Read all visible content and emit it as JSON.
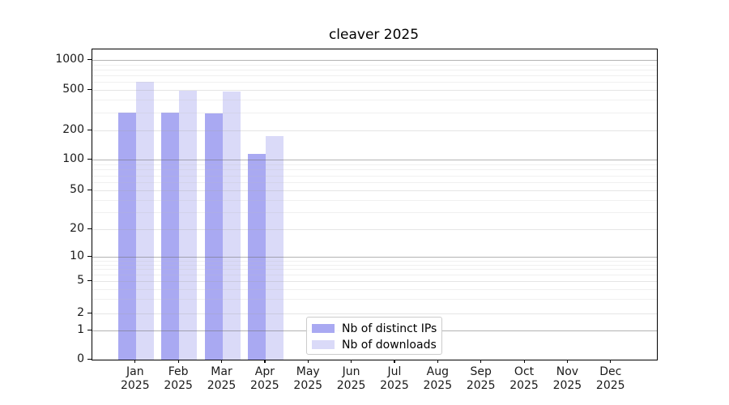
{
  "chart_data": {
    "type": "bar",
    "title": "cleaver 2025",
    "categories": [
      "Jan",
      "Feb",
      "Mar",
      "Apr",
      "May",
      "Jun",
      "Jul",
      "Aug",
      "Sep",
      "Oct",
      "Nov",
      "Dec"
    ],
    "year_label": "2025",
    "series": [
      {
        "name": "Nb of distinct IPs",
        "color": "#a9a9f2",
        "values": [
          300,
          300,
          295,
          115,
          0,
          0,
          0,
          0,
          0,
          0,
          0,
          0
        ]
      },
      {
        "name": "Nb of downloads",
        "color": "#dadaf8",
        "values": [
          605,
          490,
          480,
          175,
          0,
          0,
          0,
          0,
          0,
          0,
          0,
          0
        ]
      }
    ],
    "ytick_values": [
      0,
      1,
      2,
      5,
      10,
      20,
      50,
      100,
      200,
      500,
      1000
    ],
    "ytick_labels": [
      "0",
      "1",
      "2",
      "5",
      "10",
      "20",
      "50",
      "100",
      "200",
      "500",
      "1000"
    ],
    "ylim": [
      0,
      1300
    ],
    "xlabel": "",
    "ylabel": "",
    "scale": "symlog",
    "grid": "both",
    "legend": {
      "position": "lower-center-inside",
      "labels": [
        "Nb of distinct IPs",
        "Nb of downloads"
      ]
    }
  }
}
